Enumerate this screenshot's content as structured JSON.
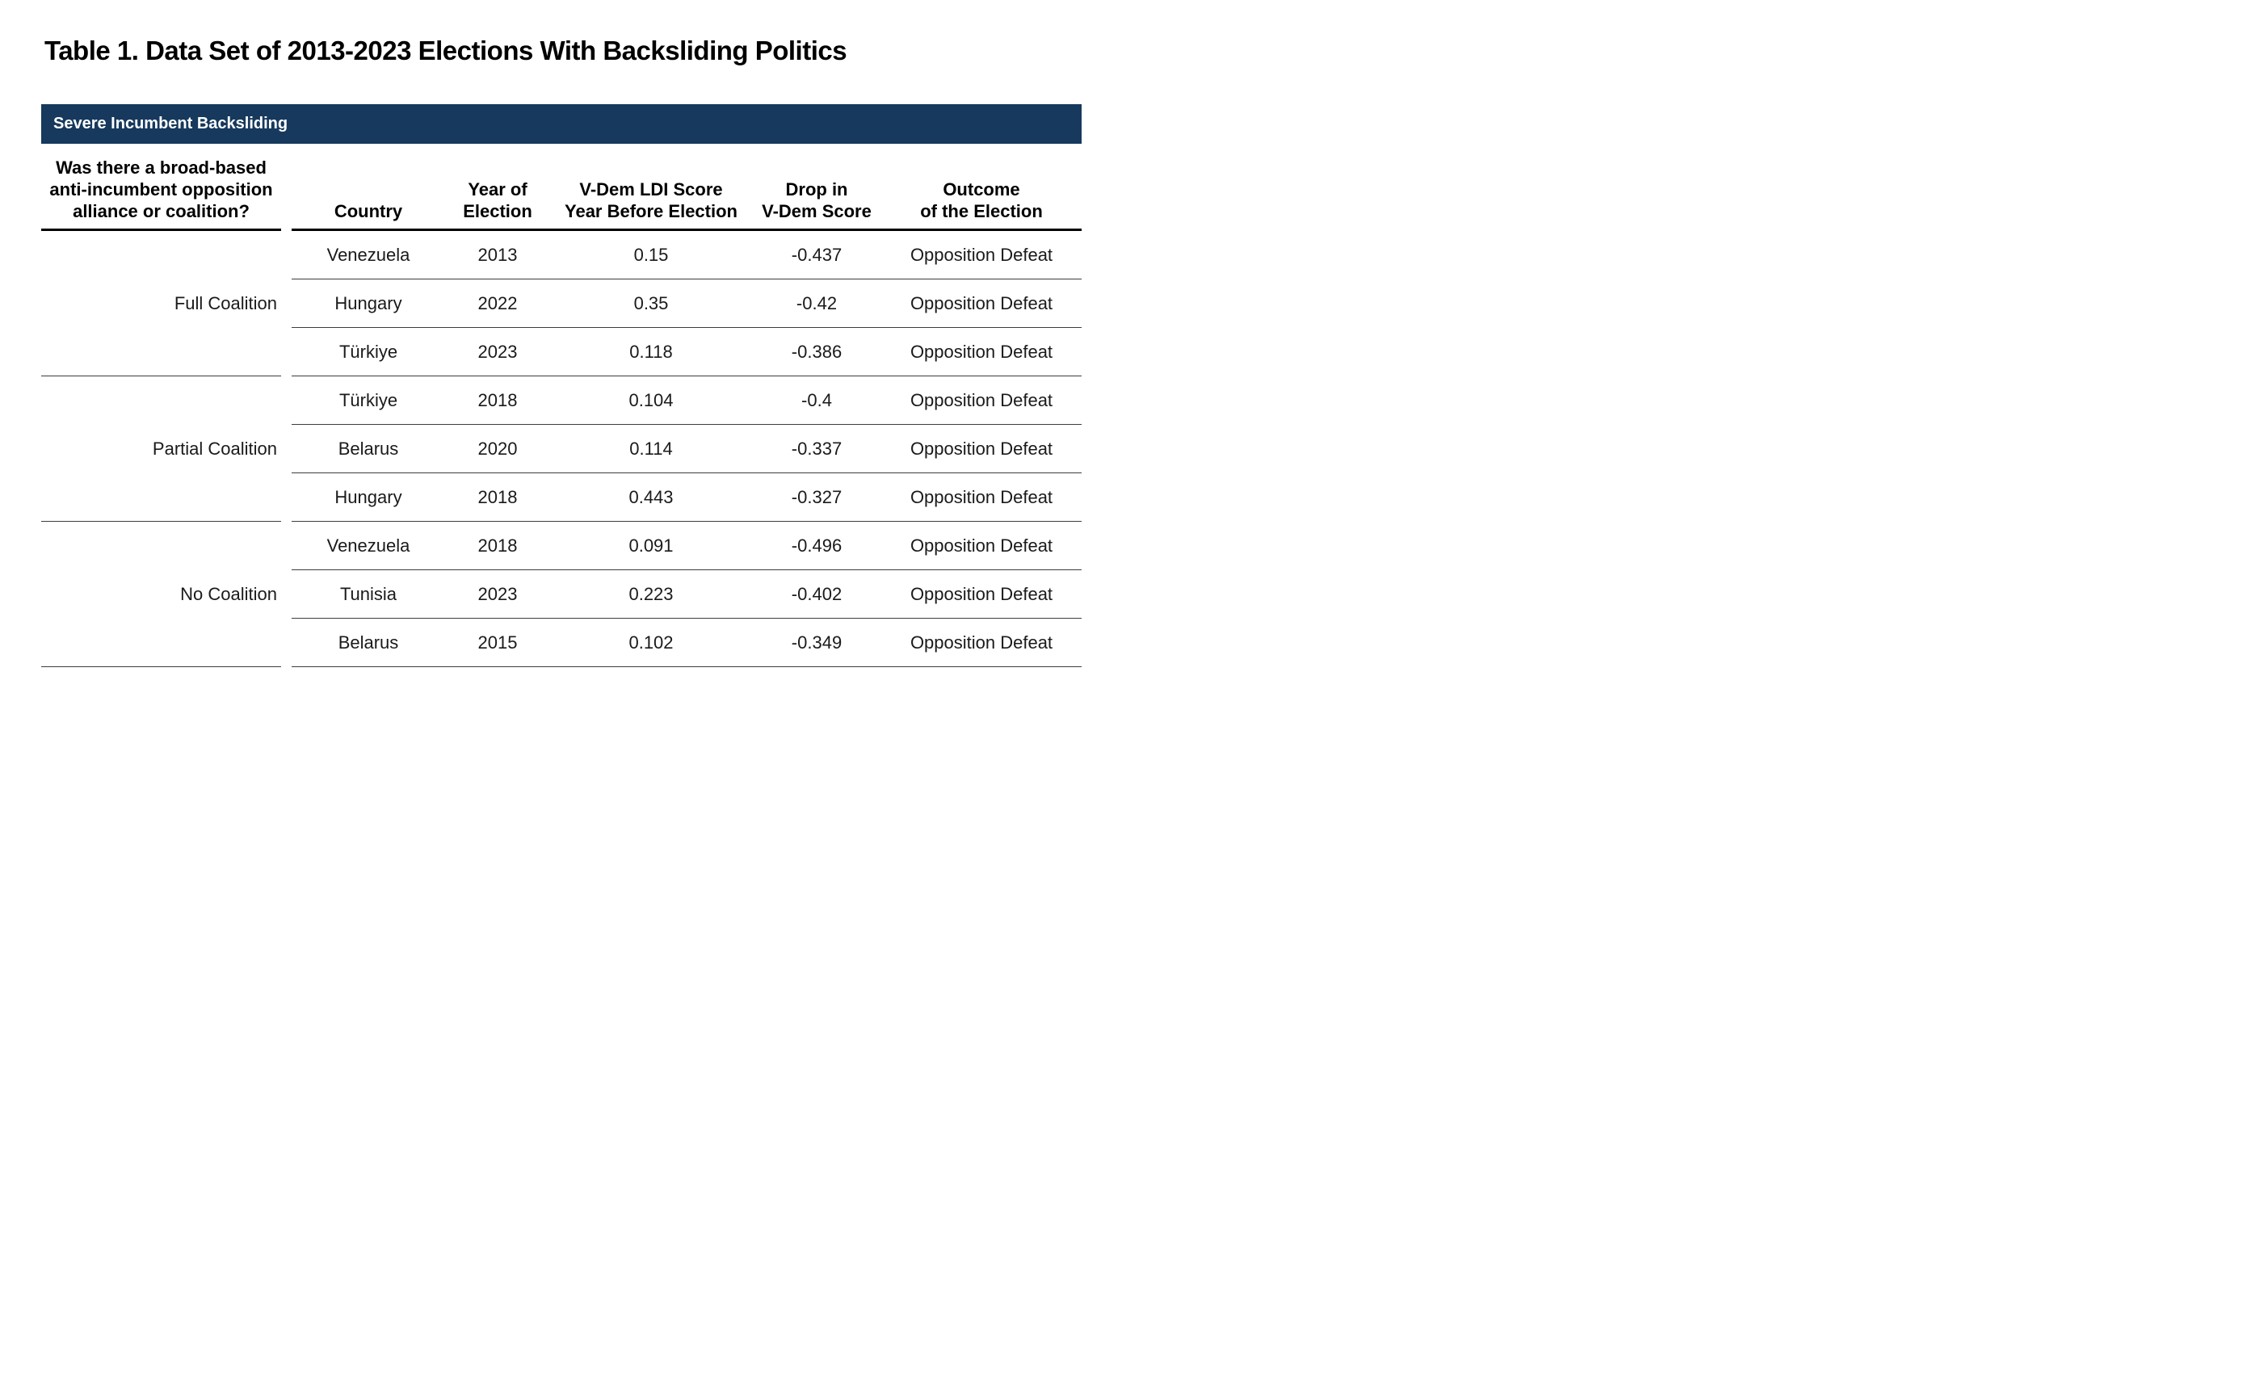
{
  "page": {
    "title": "Table 1. Data Set of 2013-2023 Elections With Backsliding Politics",
    "section_header": "Severe Incumbent Backsliding"
  },
  "colors": {
    "band_navy": "#16395D",
    "header_underline": "#000000",
    "row_separator": "#3d3d3d"
  },
  "table": {
    "coalition_header": {
      "lines": [
        "Was there a broad-based",
        "anti-incumbent opposition",
        "alliance or coalition?"
      ]
    },
    "column_headers": [
      {
        "lines": [
          "Country",
          ""
        ]
      },
      {
        "lines": [
          "Year of",
          "Election"
        ]
      },
      {
        "lines": [
          "V-Dem LDI Score",
          "Year Before Election"
        ]
      },
      {
        "lines": [
          "Drop in",
          "V-Dem Score"
        ]
      },
      {
        "lines": [
          "Outcome",
          "of the Election"
        ]
      }
    ],
    "groups": [
      {
        "label": "Full Coalition",
        "rows": [
          {
            "country": "Venezuela",
            "year": "2013",
            "ldi_score_year_before": "0.15",
            "drop_in_vdem": "-0.437",
            "outcome": "Opposition Defeat"
          },
          {
            "country": "Hungary",
            "year": "2022",
            "ldi_score_year_before": "0.35",
            "drop_in_vdem": "-0.42",
            "outcome": "Opposition Defeat"
          },
          {
            "country": "Türkiye",
            "year": "2023",
            "ldi_score_year_before": "0.118",
            "drop_in_vdem": "-0.386",
            "outcome": "Opposition Defeat"
          }
        ]
      },
      {
        "label": "Partial Coalition",
        "rows": [
          {
            "country": "Türkiye",
            "year": "2018",
            "ldi_score_year_before": "0.104",
            "drop_in_vdem": "-0.4",
            "outcome": "Opposition Defeat"
          },
          {
            "country": "Belarus",
            "year": "2020",
            "ldi_score_year_before": "0.114",
            "drop_in_vdem": "-0.337",
            "outcome": "Opposition Defeat"
          },
          {
            "country": "Hungary",
            "year": "2018",
            "ldi_score_year_before": "0.443",
            "drop_in_vdem": "-0.327",
            "outcome": "Opposition Defeat"
          }
        ]
      },
      {
        "label": "No Coalition",
        "rows": [
          {
            "country": "Venezuela",
            "year": "2018",
            "ldi_score_year_before": "0.091",
            "drop_in_vdem": "-0.496",
            "outcome": "Opposition Defeat"
          },
          {
            "country": "Tunisia",
            "year": "2023",
            "ldi_score_year_before": "0.223",
            "drop_in_vdem": "-0.402",
            "outcome": "Opposition Defeat"
          },
          {
            "country": "Belarus",
            "year": "2015",
            "ldi_score_year_before": "0.102",
            "drop_in_vdem": "-0.349",
            "outcome": "Opposition Defeat"
          }
        ]
      }
    ]
  }
}
